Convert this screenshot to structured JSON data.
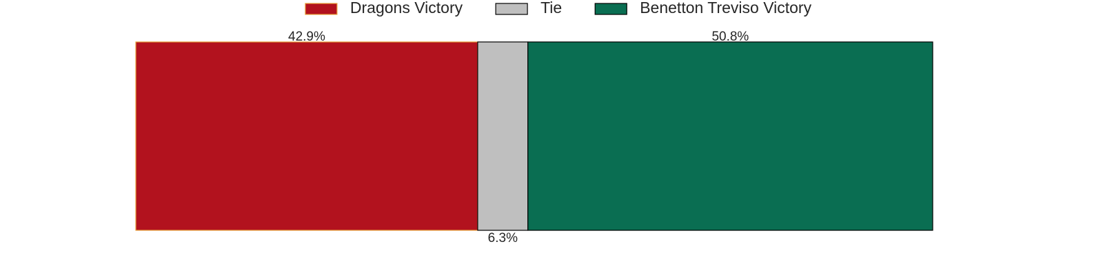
{
  "chart_data": {
    "type": "bar",
    "orientation": "horizontal",
    "stacked": true,
    "legend": "upper center",
    "xlim": [
      0,
      100
    ],
    "series": [
      {
        "name": "Dragons Victory",
        "color": "#b2121e",
        "edgecolor": "#e8a33d",
        "values": [
          42.9
        ],
        "value_labels": [
          "42.9%"
        ]
      },
      {
        "name": "Tie",
        "color": "#bfbfbf",
        "edgecolor": "#000000",
        "values": [
          6.3
        ],
        "value_labels": [
          "6.3%"
        ]
      },
      {
        "name": "Benetton Treviso Victory",
        "color": "#0a6e52",
        "edgecolor": "#000000",
        "values": [
          50.8
        ],
        "value_labels": [
          "50.8%"
        ]
      }
    ]
  }
}
